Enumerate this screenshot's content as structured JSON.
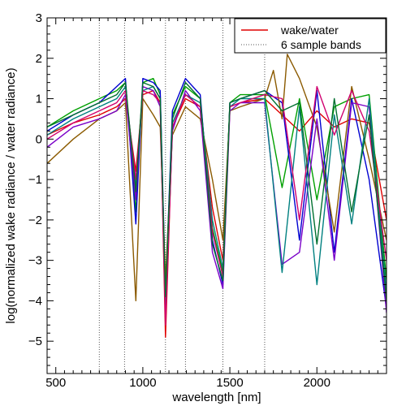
{
  "chart_data": {
    "type": "line",
    "xlabel": "wavelength [nm]",
    "ylabel": "log(normalized wake radiance / water radiance)",
    "xlim": [
      450,
      2400
    ],
    "ylim": [
      -5.8,
      3
    ],
    "xticks": [
      500,
      1000,
      1500,
      2000
    ],
    "yticks": [
      -5,
      -4,
      -3,
      -2,
      -1,
      0,
      1,
      2,
      3
    ],
    "grid": false,
    "legend": {
      "position": "top-right",
      "entries": [
        {
          "label": "wake/water",
          "style": "solid",
          "color": "#e00000"
        },
        {
          "label": "6 sample bands",
          "style": "dotted",
          "color": "#555555"
        }
      ]
    },
    "sample_bands": [
      750,
      895,
      1130,
      1245,
      1460,
      1700
    ],
    "series_colors": [
      "#e00000",
      "#00a000",
      "#0000d0",
      "#8b5a00",
      "#7a00c8",
      "#008080",
      "#d0006f",
      "#007030"
    ],
    "series": [
      {
        "x": [
          450,
          600,
          750,
          850,
          900,
          960,
          1000,
          1060,
          1100,
          1130,
          1170,
          1245,
          1330,
          1400,
          1460,
          1500,
          1560,
          1700,
          1800,
          1900,
          2000,
          2100,
          2200,
          2300,
          2400
        ],
        "values": [
          0.1,
          0.4,
          0.6,
          0.8,
          1.0,
          -0.8,
          1.1,
          1.2,
          0.9,
          -4.9,
          0.3,
          1.0,
          0.8,
          -1.7,
          -3.0,
          0.8,
          0.9,
          1.0,
          0.6,
          0.2,
          0.7,
          0.3,
          0.5,
          0.4,
          -2.0
        ]
      },
      {
        "x": [
          450,
          600,
          750,
          850,
          900,
          960,
          1000,
          1060,
          1100,
          1130,
          1170,
          1245,
          1330,
          1400,
          1460,
          1500,
          1560,
          1700,
          1800,
          1900,
          2000,
          2100,
          2200,
          2300,
          2400
        ],
        "values": [
          0.3,
          0.7,
          1.0,
          1.2,
          1.4,
          -1.8,
          1.4,
          1.5,
          1.1,
          -4.0,
          0.6,
          1.3,
          1.0,
          -2.2,
          -3.3,
          0.9,
          1.1,
          1.1,
          -1.2,
          1.0,
          -1.5,
          0.8,
          1.0,
          1.1,
          -3.5
        ]
      },
      {
        "x": [
          450,
          600,
          750,
          850,
          900,
          960,
          1000,
          1060,
          1100,
          1130,
          1170,
          1245,
          1330,
          1400,
          1460,
          1500,
          1560,
          1700,
          1800,
          1900,
          2000,
          2100,
          2200,
          2300,
          2400
        ],
        "values": [
          0.2,
          0.6,
          0.9,
          1.3,
          1.5,
          -2.1,
          1.5,
          1.4,
          1.2,
          -3.8,
          0.7,
          1.5,
          1.1,
          -2.5,
          -3.6,
          0.9,
          1.0,
          1.2,
          0.9,
          -2.5,
          1.2,
          -2.8,
          1.0,
          -1.0,
          -4.2
        ]
      },
      {
        "x": [
          450,
          600,
          750,
          850,
          900,
          960,
          1000,
          1060,
          1100,
          1130,
          1170,
          1245,
          1330,
          1400,
          1460,
          1500,
          1560,
          1700,
          1750,
          1800,
          1830,
          1900,
          2000,
          2100,
          2200,
          2300,
          2400
        ],
        "values": [
          -0.6,
          0.0,
          0.5,
          0.7,
          0.9,
          -4.0,
          1.0,
          0.6,
          0.3,
          -3.5,
          0.1,
          0.8,
          0.5,
          -1.0,
          -2.5,
          0.7,
          0.8,
          1.0,
          1.7,
          0.5,
          2.1,
          1.5,
          0.3,
          -2.3,
          1.3,
          -0.5,
          -2.5
        ]
      },
      {
        "x": [
          450,
          600,
          750,
          850,
          900,
          960,
          1000,
          1060,
          1100,
          1130,
          1170,
          1245,
          1330,
          1400,
          1460,
          1500,
          1560,
          1700,
          1800,
          1900,
          2000,
          2100,
          2200,
          2300,
          2400
        ],
        "values": [
          -0.2,
          0.3,
          0.5,
          0.7,
          1.1,
          -1.5,
          1.3,
          1.2,
          0.8,
          -4.4,
          0.2,
          1.2,
          0.7,
          -2.8,
          -3.7,
          0.7,
          0.9,
          0.9,
          -3.1,
          -2.8,
          0.5,
          -3.0,
          0.9,
          0.8,
          -4.3
        ]
      },
      {
        "x": [
          450,
          600,
          750,
          850,
          900,
          960,
          1000,
          1060,
          1100,
          1130,
          1170,
          1245,
          1330,
          1400,
          1460,
          1500,
          1560,
          1700,
          1800,
          1900,
          2000,
          2100,
          2200,
          2300,
          2400
        ],
        "values": [
          0.1,
          0.5,
          0.8,
          1.0,
          1.3,
          -1.2,
          1.2,
          1.3,
          1.0,
          -4.1,
          0.4,
          1.1,
          0.9,
          -2.0,
          -3.2,
          0.8,
          1.0,
          1.0,
          -3.3,
          0.8,
          -3.6,
          0.6,
          -2.1,
          1.0,
          -3.8
        ]
      },
      {
        "x": [
          450,
          600,
          750,
          850,
          900,
          960,
          1000,
          1060,
          1100,
          1130,
          1170,
          1245,
          1330,
          1400,
          1460,
          1500,
          1560,
          1700,
          1800,
          1900,
          2000,
          2100,
          2200,
          2300,
          2400
        ],
        "values": [
          0.0,
          0.4,
          0.7,
          0.9,
          1.2,
          -1.0,
          1.2,
          1.1,
          0.9,
          -4.6,
          0.3,
          1.1,
          0.8,
          -2.3,
          -3.4,
          0.8,
          0.9,
          1.1,
          1.0,
          -2.0,
          1.3,
          0.1,
          1.2,
          0.2,
          -3.0
        ]
      },
      {
        "x": [
          450,
          600,
          750,
          850,
          900,
          960,
          1000,
          1060,
          1100,
          1130,
          1170,
          1245,
          1330,
          1400,
          1460,
          1500,
          1560,
          1700,
          1800,
          1900,
          2000,
          2100,
          2200,
          2300,
          2400
        ],
        "values": [
          0.3,
          0.6,
          0.9,
          1.1,
          1.4,
          -1.3,
          1.4,
          1.3,
          1.0,
          -3.9,
          0.5,
          1.4,
          1.0,
          -2.6,
          -3.5,
          0.9,
          1.0,
          1.2,
          0.7,
          0.9,
          -2.6,
          1.0,
          -1.8,
          0.6,
          -4.0
        ]
      }
    ]
  }
}
